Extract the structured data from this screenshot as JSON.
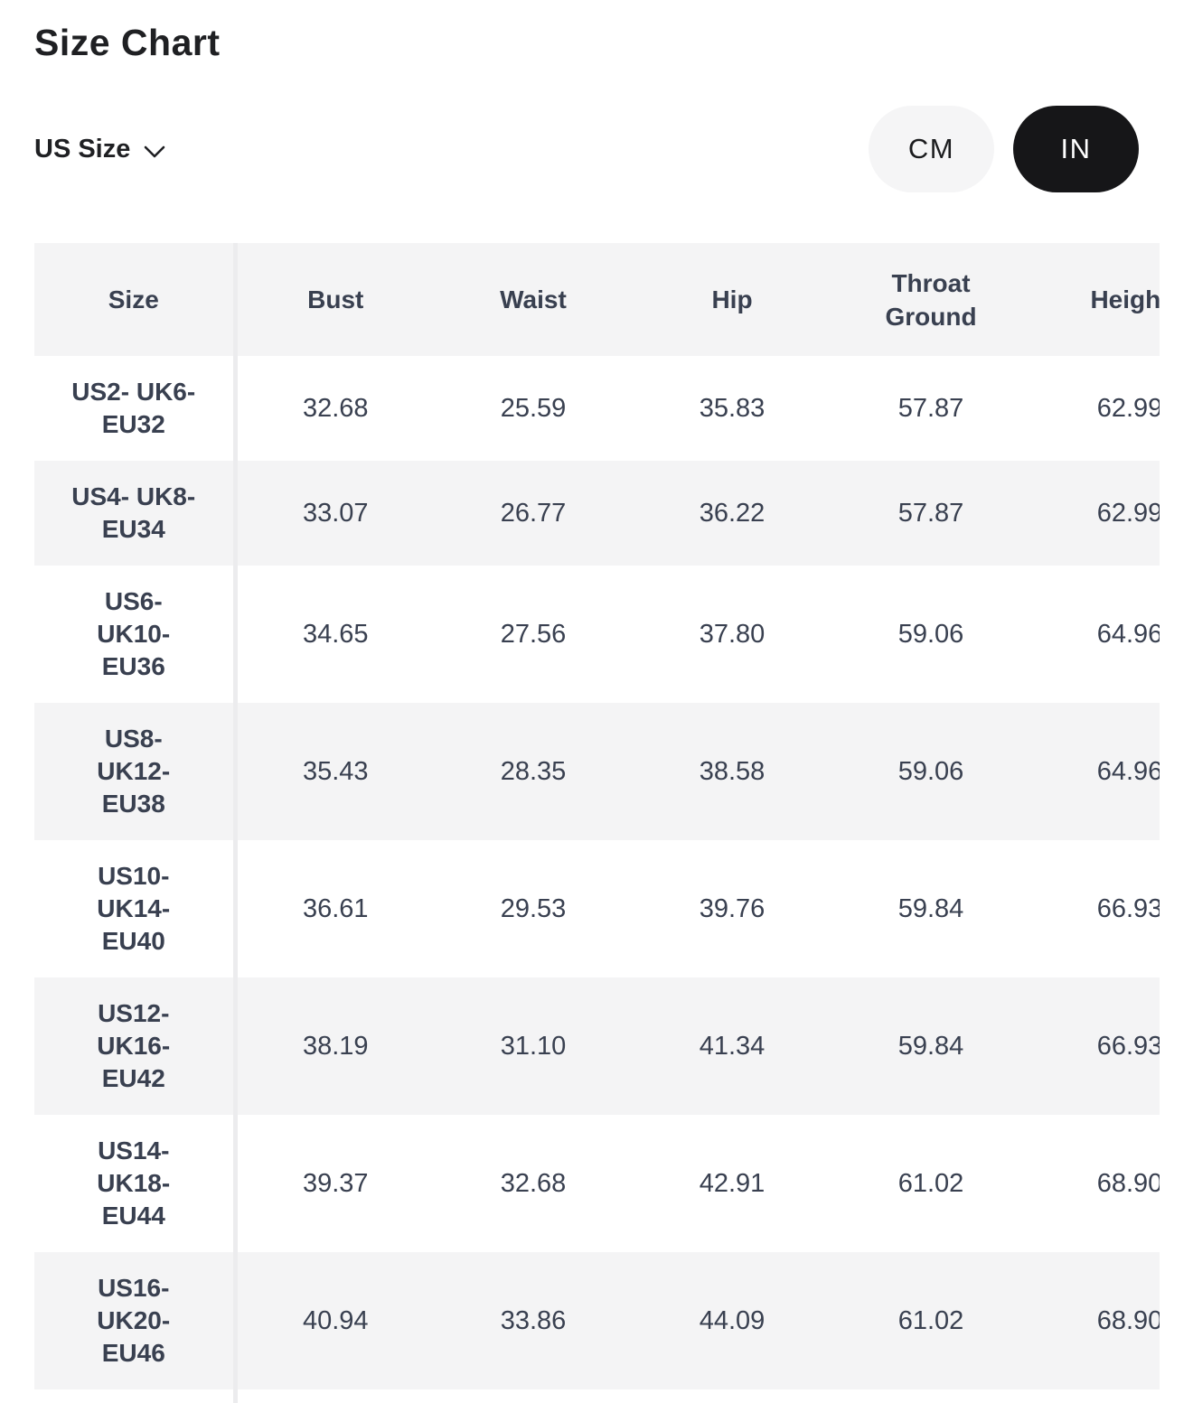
{
  "page": {
    "title": "Size Chart"
  },
  "controls": {
    "size_standard": {
      "label": "US Size",
      "icon": "chevron-down"
    },
    "unit_toggle": {
      "cm_label": "CM",
      "in_label": "IN",
      "selected": "IN",
      "active_bg": "#161618",
      "active_text": "#ffffff",
      "inactive_bg": "#f5f5f6",
      "inactive_text": "#1b1c1e"
    }
  },
  "table": {
    "columns": [
      "Size",
      "Bust",
      "Waist",
      "Hip",
      "Throat\nGround",
      "Height"
    ],
    "rows": [
      {
        "size": "US2- UK6-\nEU32",
        "values": [
          "32.68",
          "25.59",
          "35.83",
          "57.87",
          "62.99"
        ]
      },
      {
        "size": "US4- UK8-\nEU34",
        "values": [
          "33.07",
          "26.77",
          "36.22",
          "57.87",
          "62.99"
        ]
      },
      {
        "size": "US6-\nUK10-\nEU36",
        "values": [
          "34.65",
          "27.56",
          "37.80",
          "59.06",
          "64.96"
        ]
      },
      {
        "size": "US8-\nUK12-\nEU38",
        "values": [
          "35.43",
          "28.35",
          "38.58",
          "59.06",
          "64.96"
        ]
      },
      {
        "size": "US10-\nUK14-\nEU40",
        "values": [
          "36.61",
          "29.53",
          "39.76",
          "59.84",
          "66.93"
        ]
      },
      {
        "size": "US12-\nUK16-\nEU42",
        "values": [
          "38.19",
          "31.10",
          "41.34",
          "59.84",
          "66.93"
        ]
      },
      {
        "size": "US14-\nUK18-\nEU44",
        "values": [
          "39.37",
          "32.68",
          "42.91",
          "61.02",
          "68.90"
        ]
      },
      {
        "size": "US16-\nUK20-\nEU46",
        "values": [
          "40.94",
          "33.86",
          "44.09",
          "61.02",
          "68.90"
        ]
      }
    ],
    "stripe_bg": "#f4f4f5",
    "text_color": "#394050",
    "divider_color": "#ececee",
    "clipped_note": "Height column cut off at right viewport edge"
  }
}
